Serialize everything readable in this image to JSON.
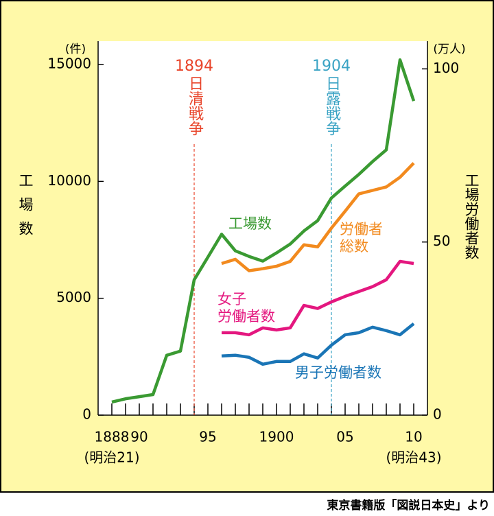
{
  "chart_data": {
    "type": "line",
    "x": [
      1888,
      1889,
      1890,
      1891,
      1892,
      1893,
      1894,
      1895,
      1896,
      1897,
      1898,
      1899,
      1900,
      1901,
      1902,
      1903,
      1904,
      1905,
      1906,
      1907,
      1908,
      1909,
      1910
    ],
    "xlim": [
      1887,
      1911
    ],
    "xticks": [
      {
        "value": 1888,
        "label": "1888"
      },
      {
        "value": 1890,
        "label": "90"
      },
      {
        "value": 1895,
        "label": "95"
      },
      {
        "value": 1900,
        "label": "1900"
      },
      {
        "value": 1905,
        "label": "05"
      },
      {
        "value": 1910,
        "label": "10"
      }
    ],
    "xminorticks": [
      1889,
      1891,
      1892,
      1893,
      1894,
      1896,
      1897,
      1898,
      1899,
      1901,
      1902,
      1903,
      1904,
      1906,
      1907,
      1908,
      1909
    ],
    "x_sublabels": [
      {
        "value": 1888,
        "label": "(明治21)"
      },
      {
        "value": 1910,
        "label": "(明治43)"
      }
    ],
    "ylim": [
      0,
      16000
    ],
    "yticks": [
      0,
      5000,
      10000,
      15000
    ],
    "y2lim": [
      0,
      108
    ],
    "y2ticks": [
      0,
      50,
      100
    ],
    "y_unit": "(件)",
    "y2_unit": "(万人)",
    "ylabel": "工場数",
    "y2label": "工場労働者数",
    "events": [
      {
        "year": 1894,
        "text": "日清戦争",
        "color": "#e8442a"
      },
      {
        "year": 1904,
        "text": "日露戦争",
        "color": "#3aa3c4"
      }
    ],
    "series": [
      {
        "name": "工場数",
        "color": "#3a9a32",
        "values": [
          560,
          700,
          790,
          880,
          2560,
          2740,
          5790,
          6760,
          7740,
          7030,
          6790,
          6590,
          6940,
          7320,
          7880,
          8320,
          9290,
          9800,
          10300,
          10850,
          11350,
          15200,
          13440
        ]
      },
      {
        "name": "労働者\n総数",
        "color": "#f28a1e",
        "axis": "y2",
        "values": [
          null,
          null,
          null,
          null,
          null,
          null,
          null,
          null,
          43.8,
          45,
          41.7,
          42.3,
          43,
          44.4,
          49.2,
          48.6,
          54,
          58.9,
          63.9,
          64.9,
          65.9,
          68.7,
          72.8
        ]
      },
      {
        "name": "女子\n労働者数",
        "color": "#e4177f",
        "axis": "y2",
        "values": [
          null,
          null,
          null,
          null,
          null,
          null,
          null,
          null,
          23.8,
          23.8,
          23.2,
          25.2,
          24.6,
          25.2,
          31.7,
          30.8,
          32.7,
          34.3,
          35.7,
          37.1,
          39.1,
          44.4,
          43.8
        ]
      },
      {
        "name": "男子労働者数",
        "color": "#1a75b6",
        "axis": "y2",
        "values": [
          null,
          null,
          null,
          null,
          null,
          null,
          null,
          null,
          17.1,
          17.3,
          16.7,
          14.7,
          15.5,
          15.5,
          17.7,
          16.5,
          20.2,
          23.2,
          23.8,
          25.4,
          24.4,
          23.2,
          26.4
        ]
      }
    ],
    "source": "東京書籍版「図説日本史」より"
  }
}
